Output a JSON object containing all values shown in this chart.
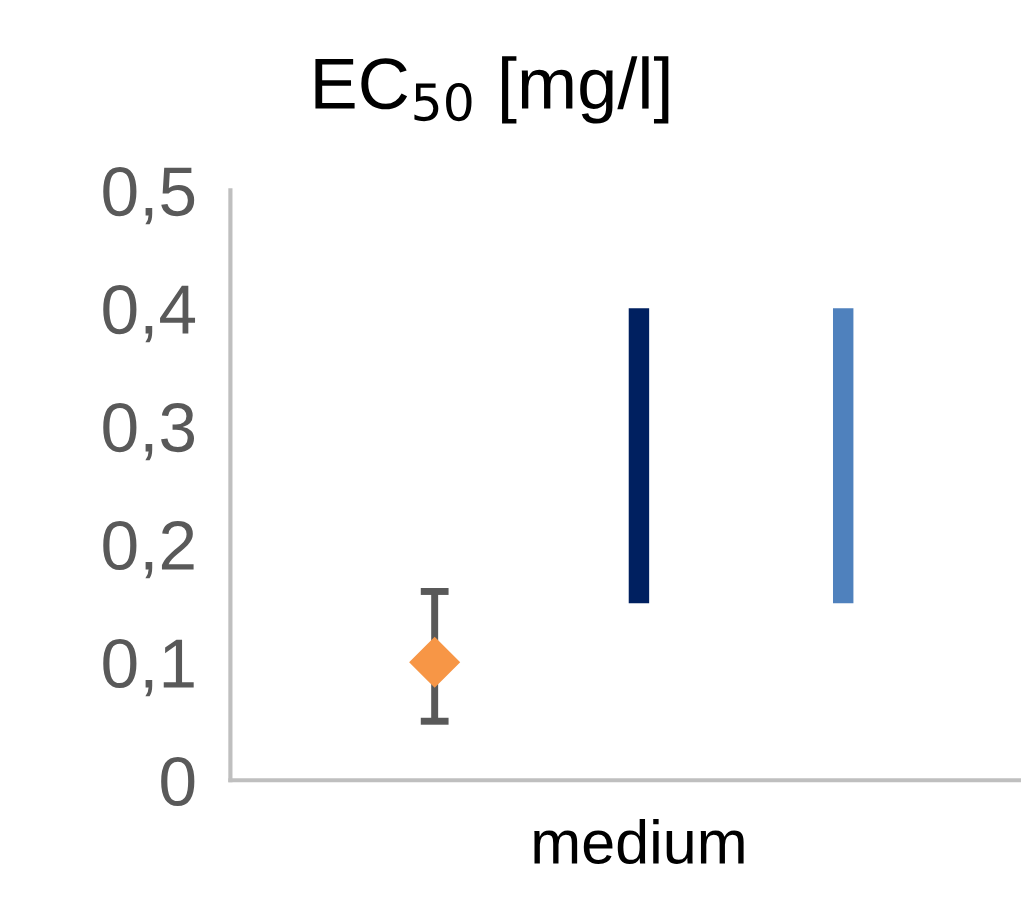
{
  "chart_data": {
    "type": "bar",
    "title": "EC$_{50}$ [mg/l]",
    "categories": [
      null,
      "medium",
      null
    ],
    "series": [
      {
        "type": "scatter",
        "color": "#f79646",
        "values": [
          0.1,
          null,
          null
        ],
        "errors": [
          [
            0.05,
            0.16
          ],
          null,
          null
        ],
        "marker": "diamond"
      },
      {
        "color": "#002060",
        "values": [
          null,
          0.25,
          null
        ],
        "base": [
          null,
          0.15,
          null
        ]
      },
      {
        "color": "#4f81bd",
        "values": [
          null,
          null,
          0.25
        ],
        "base": [
          null,
          null,
          0.15
        ]
      }
    ],
    "ylim": [
      0,
      0.5
    ],
    "yticks": [
      0,
      {
        "value": 0.1,
        "label": "0,1"
      },
      {
        "value": 0.2,
        "label": "0,2"
      },
      {
        "value": 0.3,
        "label": "0,3"
      },
      {
        "value": 0.4,
        "label": "0,4"
      },
      {
        "value": 0.5,
        "label": "0,5"
      }
    ],
    "grid": false,
    "legend": false
  }
}
